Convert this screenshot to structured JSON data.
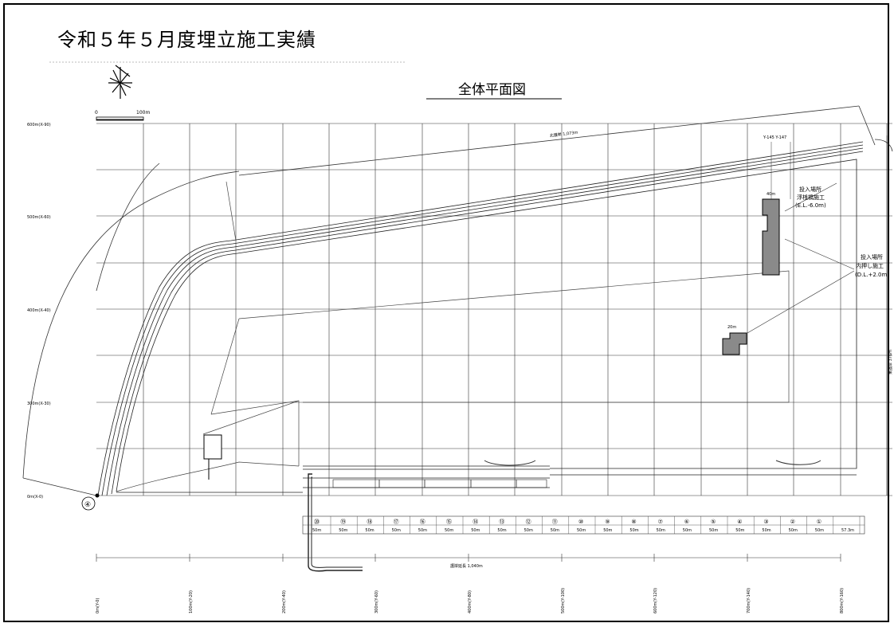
{
  "heading": "令和５年５月度埋立施工実績",
  "plan_title": "全体平面図",
  "scale": {
    "zero": "0",
    "end": "100m"
  },
  "y_axis_labels": [
    "600m(X-90)",
    "500m(X-60)",
    "400m(X-40)",
    "300m(X-30)",
    "0m(X-0)"
  ],
  "x_axis_labels": [
    "0m(Y-0)",
    "100m(Y-20)",
    "200m(Y-40)",
    "300m(Y-60)",
    "400m(Y-80)",
    "500m(Y-100)",
    "600m(Y-120)",
    "700m(Y-140)",
    "800m(Y-160)"
  ],
  "callouts": {
    "upper_block_lines": [
      "投入場所",
      "浮桟橋施工",
      "(E.L.-6.0m)"
    ],
    "right_block_lines": [
      "投入場所",
      "内押し施工",
      "(D.L.+2.0m)"
    ],
    "grid_refs": "Y-145  Y-147",
    "dim_a": "40m",
    "dim_b": "20m"
  },
  "berth_numbers": [
    "⑳",
    "⑲",
    "⑱",
    "⑰",
    "⑯",
    "⑮",
    "⑭",
    "⑬",
    "⑫",
    "⑪",
    "⑩",
    "⑨",
    "⑧",
    "⑦",
    "⑥",
    "⑤",
    "④",
    "③",
    "②",
    "①"
  ],
  "berth_lengths": [
    "50m",
    "50m",
    "50m",
    "50m",
    "50m",
    "50m",
    "50m",
    "50m",
    "50m",
    "50m",
    "50m",
    "50m",
    "50m",
    "50m",
    "50m",
    "50m",
    "50m",
    "50m",
    "50m",
    "50m",
    "57.3m"
  ],
  "bottom_dimension": "護岸延長 1,040m",
  "top_dimension": "北護岸 1,073m",
  "right_dimension": "東護岸 376m",
  "start_marker": "④"
}
